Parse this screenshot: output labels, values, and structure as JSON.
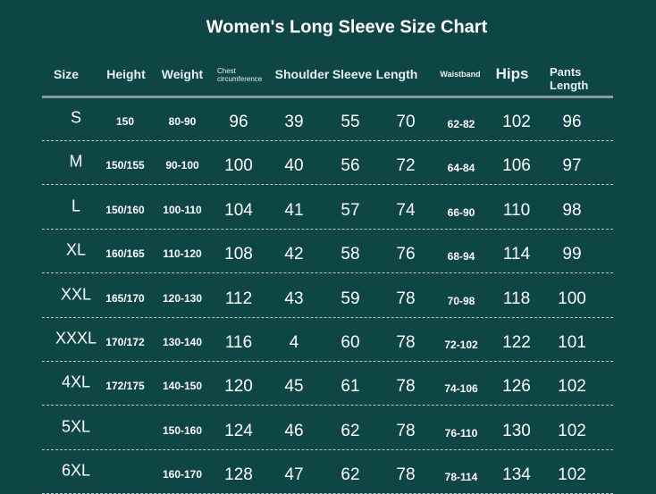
{
  "header": {
    "title": "Women's Long Sleeve Size Chart"
  },
  "table": {
    "columns": [
      "Size",
      "Height",
      "Weight",
      "Chest circumference",
      "Shoulder",
      "Sleeve",
      "Length",
      "Waistband",
      "Hips",
      "Pants Length"
    ],
    "rows": [
      [
        "S",
        "150",
        "80-90",
        "96",
        "39",
        "55",
        "70",
        "62-82",
        "102",
        "96"
      ],
      [
        "M",
        "150/155",
        "90-100",
        "100",
        "40",
        "56",
        "72",
        "64-84",
        "106",
        "97"
      ],
      [
        "L",
        "150/160",
        "100-110",
        "104",
        "41",
        "57",
        "74",
        "66-90",
        "110",
        "98"
      ],
      [
        "XL",
        "160/165",
        "110-120",
        "108",
        "42",
        "58",
        "76",
        "68-94",
        "114",
        "99"
      ],
      [
        "XXL",
        "165/170",
        "120-130",
        "112",
        "43",
        "59",
        "78",
        "70-98",
        "118",
        "100"
      ],
      [
        "XXXL",
        "170/172",
        "130-140",
        "116",
        "4",
        "60",
        "78",
        "72-102",
        "122",
        "101"
      ],
      [
        "4XL",
        "172/175",
        "140-150",
        "120",
        "45",
        "61",
        "78",
        "74-106",
        "126",
        "102"
      ],
      [
        "5XL",
        null,
        "150-160",
        "124",
        "46",
        "62",
        "78",
        "76-110",
        "130",
        "102"
      ],
      [
        "6XL",
        null,
        "160-170",
        "128",
        "47",
        "62",
        "78",
        "78-114",
        "134",
        "102"
      ]
    ]
  }
}
